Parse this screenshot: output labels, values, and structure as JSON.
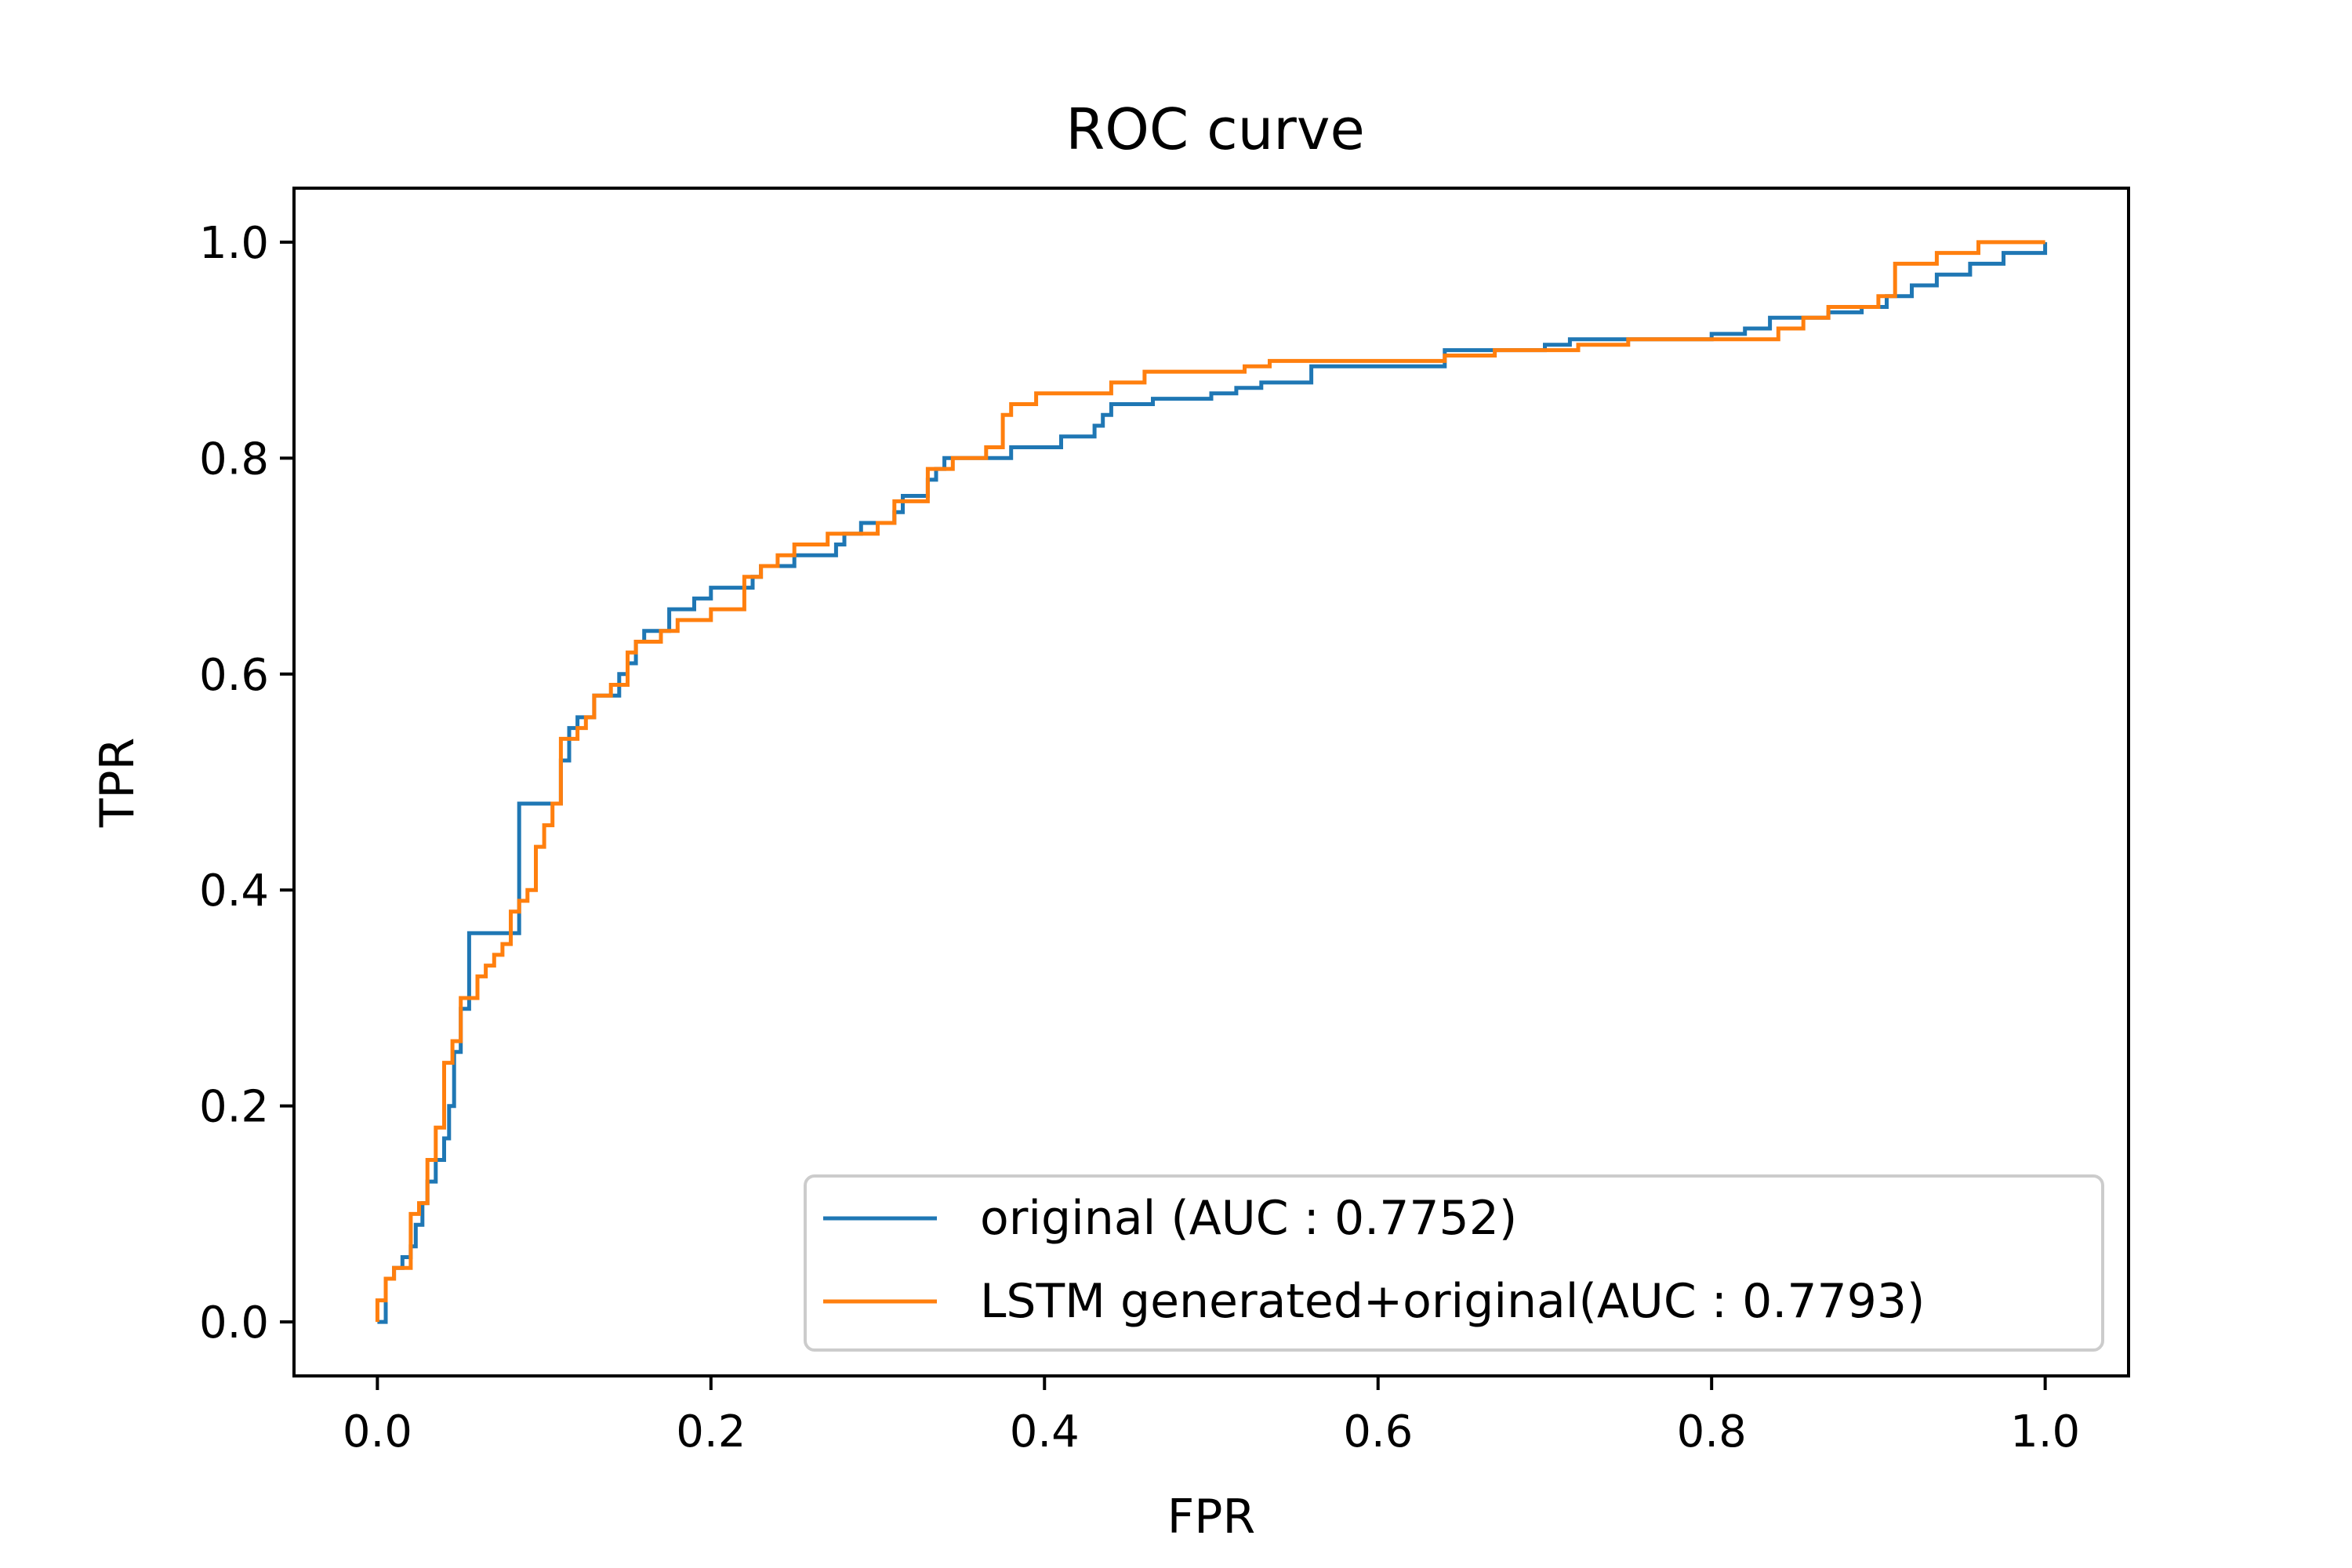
{
  "chart_data": {
    "type": "line",
    "title": "ROC curve",
    "xlabel": "FPR",
    "ylabel": "TPR",
    "xlim": [
      -0.05,
      1.05
    ],
    "ylim": [
      -0.05,
      1.05
    ],
    "xticks": [
      "0.0",
      "0.2",
      "0.4",
      "0.6",
      "0.8",
      "1.0"
    ],
    "yticks": [
      "0.0",
      "0.2",
      "0.4",
      "0.6",
      "0.8",
      "1.0"
    ],
    "grid": false,
    "legend_position": "lower-right",
    "series": [
      {
        "name": "original (AUC : 0.7752)",
        "color": "#1f77b4",
        "x": [
          0.0,
          0.005,
          0.005,
          0.01,
          0.01,
          0.015,
          0.015,
          0.02,
          0.02,
          0.023,
          0.023,
          0.027,
          0.027,
          0.03,
          0.03,
          0.035,
          0.035,
          0.04,
          0.04,
          0.043,
          0.043,
          0.046,
          0.046,
          0.05,
          0.05,
          0.055,
          0.055,
          0.07,
          0.07,
          0.085,
          0.085,
          0.1,
          0.1,
          0.11,
          0.11,
          0.115,
          0.115,
          0.12,
          0.12,
          0.13,
          0.13,
          0.145,
          0.145,
          0.15,
          0.15,
          0.155,
          0.155,
          0.16,
          0.16,
          0.175,
          0.175,
          0.19,
          0.19,
          0.2,
          0.2,
          0.225,
          0.225,
          0.23,
          0.23,
          0.24,
          0.24,
          0.25,
          0.25,
          0.275,
          0.275,
          0.28,
          0.28,
          0.29,
          0.29,
          0.31,
          0.31,
          0.315,
          0.315,
          0.32,
          0.32,
          0.33,
          0.33,
          0.335,
          0.335,
          0.34,
          0.34,
          0.35,
          0.35,
          0.38,
          0.38,
          0.395,
          0.395,
          0.41,
          0.41,
          0.43,
          0.43,
          0.435,
          0.435,
          0.44,
          0.44,
          0.465,
          0.465,
          0.5,
          0.5,
          0.515,
          0.515,
          0.53,
          0.53,
          0.56,
          0.56,
          0.64,
          0.64,
          0.7,
          0.7,
          0.715,
          0.715,
          0.8,
          0.8,
          0.82,
          0.82,
          0.835,
          0.835,
          0.87,
          0.87,
          0.89,
          0.89,
          0.905,
          0.905,
          0.92,
          0.92,
          0.935,
          0.935,
          0.955,
          0.955,
          0.975,
          0.975,
          1.0,
          1.0
        ],
        "y": [
          0.0,
          0.0,
          0.04,
          0.04,
          0.05,
          0.05,
          0.06,
          0.06,
          0.07,
          0.07,
          0.09,
          0.09,
          0.11,
          0.11,
          0.13,
          0.13,
          0.15,
          0.15,
          0.17,
          0.17,
          0.2,
          0.2,
          0.25,
          0.25,
          0.29,
          0.29,
          0.36,
          0.36,
          0.36,
          0.36,
          0.48,
          0.48,
          0.48,
          0.48,
          0.52,
          0.52,
          0.55,
          0.55,
          0.56,
          0.56,
          0.58,
          0.58,
          0.6,
          0.6,
          0.61,
          0.61,
          0.63,
          0.63,
          0.64,
          0.64,
          0.66,
          0.66,
          0.67,
          0.67,
          0.68,
          0.68,
          0.69,
          0.69,
          0.7,
          0.7,
          0.7,
          0.7,
          0.71,
          0.71,
          0.72,
          0.72,
          0.73,
          0.73,
          0.74,
          0.74,
          0.75,
          0.75,
          0.765,
          0.765,
          0.765,
          0.765,
          0.78,
          0.78,
          0.79,
          0.79,
          0.8,
          0.8,
          0.8,
          0.8,
          0.81,
          0.81,
          0.81,
          0.81,
          0.82,
          0.82,
          0.83,
          0.83,
          0.84,
          0.84,
          0.85,
          0.85,
          0.855,
          0.855,
          0.86,
          0.86,
          0.865,
          0.865,
          0.87,
          0.87,
          0.885,
          0.885,
          0.9,
          0.9,
          0.905,
          0.905,
          0.91,
          0.91,
          0.915,
          0.915,
          0.92,
          0.92,
          0.93,
          0.93,
          0.935,
          0.935,
          0.94,
          0.94,
          0.95,
          0.95,
          0.96,
          0.96,
          0.97,
          0.97,
          0.98,
          0.98,
          0.99,
          0.99,
          1.0
        ]
      },
      {
        "name": "LSTM generated+original(AUC : 0.7793)",
        "color": "#ff7f0e",
        "x": [
          0.0,
          0.0,
          0.005,
          0.005,
          0.01,
          0.01,
          0.02,
          0.02,
          0.025,
          0.025,
          0.03,
          0.03,
          0.035,
          0.035,
          0.04,
          0.04,
          0.045,
          0.045,
          0.05,
          0.05,
          0.06,
          0.06,
          0.065,
          0.065,
          0.07,
          0.07,
          0.075,
          0.075,
          0.08,
          0.08,
          0.085,
          0.085,
          0.09,
          0.09,
          0.095,
          0.095,
          0.1,
          0.1,
          0.105,
          0.105,
          0.11,
          0.11,
          0.12,
          0.12,
          0.125,
          0.125,
          0.13,
          0.13,
          0.14,
          0.14,
          0.15,
          0.15,
          0.155,
          0.155,
          0.17,
          0.17,
          0.18,
          0.18,
          0.2,
          0.2,
          0.22,
          0.22,
          0.23,
          0.23,
          0.24,
          0.24,
          0.25,
          0.25,
          0.27,
          0.27,
          0.3,
          0.3,
          0.31,
          0.31,
          0.33,
          0.33,
          0.34,
          0.34,
          0.345,
          0.345,
          0.35,
          0.35,
          0.365,
          0.365,
          0.375,
          0.375,
          0.38,
          0.38,
          0.395,
          0.395,
          0.43,
          0.43,
          0.44,
          0.44,
          0.46,
          0.46,
          0.52,
          0.52,
          0.535,
          0.535,
          0.61,
          0.61,
          0.64,
          0.64,
          0.67,
          0.67,
          0.72,
          0.72,
          0.75,
          0.75,
          0.8,
          0.8,
          0.84,
          0.84,
          0.855,
          0.855,
          0.87,
          0.87,
          0.9,
          0.9,
          0.91,
          0.91,
          0.935,
          0.935,
          0.96,
          0.96,
          0.99,
          0.99,
          1.0
        ],
        "y": [
          0.0,
          0.02,
          0.02,
          0.04,
          0.04,
          0.05,
          0.05,
          0.1,
          0.1,
          0.11,
          0.11,
          0.15,
          0.15,
          0.18,
          0.18,
          0.24,
          0.24,
          0.26,
          0.26,
          0.3,
          0.3,
          0.32,
          0.32,
          0.33,
          0.33,
          0.34,
          0.34,
          0.35,
          0.35,
          0.38,
          0.38,
          0.39,
          0.39,
          0.4,
          0.4,
          0.44,
          0.44,
          0.46,
          0.46,
          0.48,
          0.48,
          0.54,
          0.54,
          0.55,
          0.55,
          0.56,
          0.56,
          0.58,
          0.58,
          0.59,
          0.59,
          0.62,
          0.62,
          0.63,
          0.63,
          0.64,
          0.64,
          0.65,
          0.65,
          0.66,
          0.66,
          0.69,
          0.69,
          0.7,
          0.7,
          0.71,
          0.71,
          0.72,
          0.72,
          0.73,
          0.73,
          0.74,
          0.74,
          0.76,
          0.76,
          0.79,
          0.79,
          0.79,
          0.79,
          0.8,
          0.8,
          0.8,
          0.8,
          0.81,
          0.81,
          0.84,
          0.84,
          0.85,
          0.85,
          0.86,
          0.86,
          0.86,
          0.86,
          0.87,
          0.87,
          0.88,
          0.88,
          0.885,
          0.885,
          0.89,
          0.89,
          0.89,
          0.89,
          0.895,
          0.895,
          0.9,
          0.9,
          0.905,
          0.905,
          0.91,
          0.91,
          0.91,
          0.91,
          0.92,
          0.92,
          0.93,
          0.93,
          0.94,
          0.94,
          0.95,
          0.95,
          0.98,
          0.98,
          0.99,
          0.99,
          1.0,
          1.0,
          1.0,
          1.0
        ]
      }
    ]
  }
}
